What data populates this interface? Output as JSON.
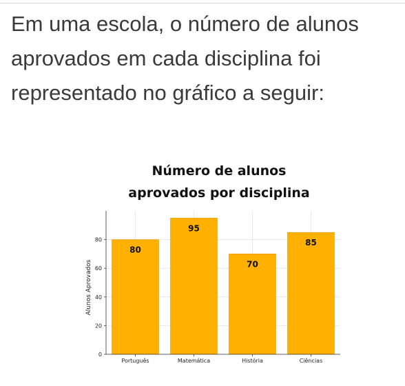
{
  "question": {
    "text": "Em uma escola, o número de alunos aprovados em cada disciplina foi representado no gráfico a seguir:"
  },
  "chart_data": {
    "type": "bar",
    "title_lines": [
      "Número de alunos",
      "aprovados por disciplina"
    ],
    "xlabel": "",
    "ylabel": "Alunos Aprovados",
    "categories": [
      "Português",
      "Matemática",
      "História",
      "Ciências"
    ],
    "values": [
      80,
      95,
      70,
      85
    ],
    "data_labels": [
      "80",
      "95",
      "70",
      "85"
    ],
    "ylim": [
      0,
      100
    ],
    "yticks": [
      0,
      20,
      40,
      60,
      80
    ],
    "grid": true,
    "legend": "none",
    "bar_color": "#FFB000",
    "bar_edge_color": "#E09A00"
  }
}
